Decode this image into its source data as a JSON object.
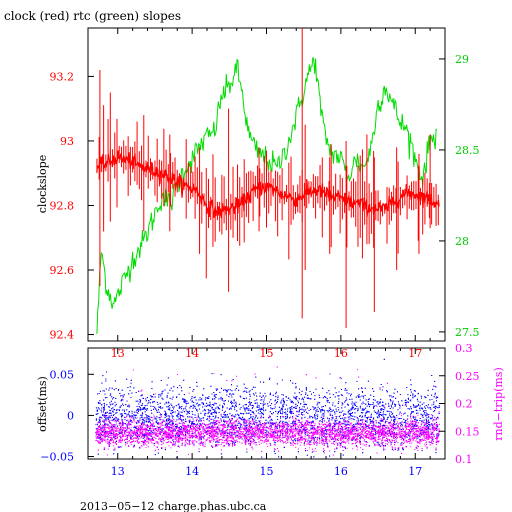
{
  "chart_data": [
    {
      "type": "line",
      "title": "clock (red) rtc (green) slopes",
      "xlim": [
        12.6,
        17.4
      ],
      "x_ticks": [
        13,
        14,
        15,
        16,
        17
      ],
      "left_axis": {
        "label": "clockslope",
        "lim": [
          92.38,
          93.35
        ],
        "ticks": [
          92.4,
          92.6,
          92.8,
          93,
          93.2
        ],
        "tick_labels": [
          "92.4",
          "92.6",
          "92.8",
          "93",
          "93.2"
        ],
        "color": "#ff0000"
      },
      "right_axis": {
        "label": "",
        "lim": [
          27.45,
          29.17
        ],
        "ticks": [
          27.5,
          28,
          28.5,
          29
        ],
        "tick_labels": [
          "27.5",
          "28",
          "28.5",
          "29"
        ],
        "color": "#00cc00"
      },
      "series": [
        {
          "name": "clock",
          "color": "#ff0000",
          "axis": "left",
          "x": [
            12.72,
            12.85,
            13.0,
            13.15,
            13.3,
            13.45,
            13.6,
            13.75,
            13.9,
            14.05,
            14.2,
            14.35,
            14.5,
            14.65,
            14.8,
            14.95,
            15.1,
            15.25,
            15.4,
            15.55,
            15.7,
            15.85,
            16.0,
            16.15,
            16.3,
            16.45,
            16.6,
            16.75,
            16.9,
            17.05,
            17.2,
            17.32
          ],
          "values": [
            92.92,
            92.93,
            92.95,
            92.94,
            92.92,
            92.91,
            92.9,
            92.88,
            92.86,
            92.85,
            92.8,
            92.78,
            92.79,
            92.8,
            92.84,
            92.86,
            92.85,
            92.83,
            92.82,
            92.84,
            92.85,
            92.83,
            92.82,
            92.81,
            92.8,
            92.79,
            92.79,
            92.82,
            92.84,
            92.83,
            92.82,
            92.8
          ],
          "spikes": [
            {
              "x": 12.76,
              "low": 92.55,
              "high": 93.22
            },
            {
              "x": 12.9,
              "low": 92.75,
              "high": 93.15
            },
            {
              "x": 13.35,
              "low": 92.72,
              "high": 93.08
            },
            {
              "x": 13.7,
              "low": 92.72,
              "high": 93.02
            },
            {
              "x": 14.1,
              "low": 92.65,
              "high": 92.98
            },
            {
              "x": 14.55,
              "low": 92.7,
              "high": 92.92
            },
            {
              "x": 14.9,
              "low": 92.72,
              "high": 92.98
            },
            {
              "x": 15.48,
              "low": 92.45,
              "high": 93.35
            },
            {
              "x": 15.52,
              "low": 92.6,
              "high": 93.05
            },
            {
              "x": 15.85,
              "low": 92.65,
              "high": 92.95
            },
            {
              "x": 16.07,
              "low": 92.42,
              "high": 93.0
            },
            {
              "x": 16.35,
              "low": 92.68,
              "high": 93.02
            },
            {
              "x": 16.45,
              "low": 92.47,
              "high": 92.95
            },
            {
              "x": 16.75,
              "low": 92.6,
              "high": 92.98
            },
            {
              "x": 17.05,
              "low": 92.65,
              "high": 92.96
            },
            {
              "x": 17.2,
              "low": 92.73,
              "high": 93.02
            }
          ]
        },
        {
          "name": "rtc",
          "color": "#00dd00",
          "axis": "right",
          "x": [
            12.72,
            12.78,
            12.85,
            12.95,
            13.05,
            13.2,
            13.35,
            13.5,
            13.6,
            13.7,
            13.8,
            13.9,
            14.0,
            14.15,
            14.3,
            14.4,
            14.5,
            14.6,
            14.68,
            14.75,
            14.85,
            15.0,
            15.15,
            15.3,
            15.45,
            15.55,
            15.65,
            15.75,
            15.85,
            16.0,
            16.1,
            16.2,
            16.3,
            16.4,
            16.5,
            16.6,
            16.7,
            16.8,
            16.9,
            17.0,
            17.1,
            17.2,
            17.3
          ],
          "values": [
            27.5,
            27.95,
            27.75,
            27.65,
            27.75,
            27.9,
            28.0,
            28.15,
            28.25,
            28.2,
            28.3,
            28.4,
            28.45,
            28.55,
            28.6,
            28.8,
            28.85,
            28.95,
            28.8,
            28.6,
            28.5,
            28.45,
            28.4,
            28.55,
            28.75,
            28.9,
            29.0,
            28.65,
            28.5,
            28.45,
            28.35,
            28.45,
            28.4,
            28.5,
            28.75,
            28.85,
            28.75,
            28.65,
            28.6,
            28.45,
            28.35,
            28.55,
            28.6
          ]
        }
      ]
    },
    {
      "type": "scatter",
      "xlim": [
        12.6,
        17.4
      ],
      "x_ticks": [
        13,
        14,
        15,
        16,
        17
      ],
      "left_axis": {
        "label": "offset(ms)",
        "lim": [
          -0.053,
          0.082
        ],
        "ticks": [
          -0.05,
          0,
          0.05
        ],
        "tick_labels": [
          "−0.05",
          "0",
          "0.05"
        ],
        "color": "#0000ff"
      },
      "right_axis": {
        "label": "rnd−trip(ms)",
        "lim": [
          0.1,
          0.3
        ],
        "ticks": [
          0.1,
          0.15,
          0.2,
          0.25,
          0.3
        ],
        "tick_labels": [
          "0.1",
          "0.15",
          "0.2",
          "0.25",
          "0.3"
        ],
        "color": "#ff00ff"
      },
      "series": [
        {
          "name": "offset",
          "color": "#0000ff",
          "axis": "left",
          "x_range": [
            12.7,
            17.32
          ],
          "center": 0.0,
          "spread": 0.018,
          "outlier_max": 0.04,
          "outlier_min": -0.03
        },
        {
          "name": "rnd-trip",
          "color": "#ff00ff",
          "axis": "right",
          "x_range": [
            12.7,
            17.32
          ],
          "center": 0.148,
          "spread": 0.012,
          "outlier_max": 0.27
        }
      ]
    }
  ],
  "footer": "2013−05−12  charge.phas.ubc.ca"
}
